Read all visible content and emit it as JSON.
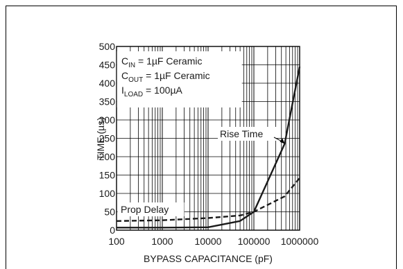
{
  "chart_data": {
    "type": "line",
    "xlabel": "BYPASS CAPACITANCE (pF)",
    "ylabel": "TIME (µs)",
    "xscale": "log",
    "xlim": [
      100,
      1000000
    ],
    "ylim": [
      0,
      500
    ],
    "x_ticks": [
      100,
      1000,
      10000,
      100000,
      1000000
    ],
    "x_tick_labels": [
      "100",
      "1000",
      "10000",
      "100000",
      "1000000"
    ],
    "y_ticks": [
      0,
      50,
      100,
      150,
      200,
      250,
      300,
      350,
      400,
      450,
      500
    ],
    "y_tick_labels": [
      "0",
      "50",
      "100",
      "150",
      "200",
      "250",
      "300",
      "350",
      "400",
      "450",
      "500"
    ],
    "grid": true,
    "conditions": [
      {
        "prefix": "C",
        "sub": "IN",
        "rest": " = 1µF Ceramic"
      },
      {
        "prefix": "C",
        "sub": "OUT",
        "rest": " = 1µF Ceramic"
      },
      {
        "prefix": "I",
        "sub": "LOAD",
        "rest": " = 100µA"
      }
    ],
    "series": [
      {
        "name": "Rise Time",
        "style": "solid",
        "x": [
          100,
          1000,
          10000,
          50000,
          100000,
          470000,
          1000000
        ],
        "y": [
          7,
          7,
          8,
          25,
          50,
          235,
          445
        ]
      },
      {
        "name": "Prop Delay",
        "style": "dashed",
        "x": [
          100,
          1000,
          10000,
          50000,
          100000,
          470000,
          1000000
        ],
        "y": [
          25,
          27,
          33,
          40,
          50,
          92,
          142
        ]
      }
    ],
    "annotations": [
      {
        "text": "Rise Time",
        "series": "Rise Time",
        "anchor_x": 470000,
        "anchor_y": 235
      },
      {
        "text": "Prop Delay",
        "series": "Prop Delay"
      }
    ]
  }
}
